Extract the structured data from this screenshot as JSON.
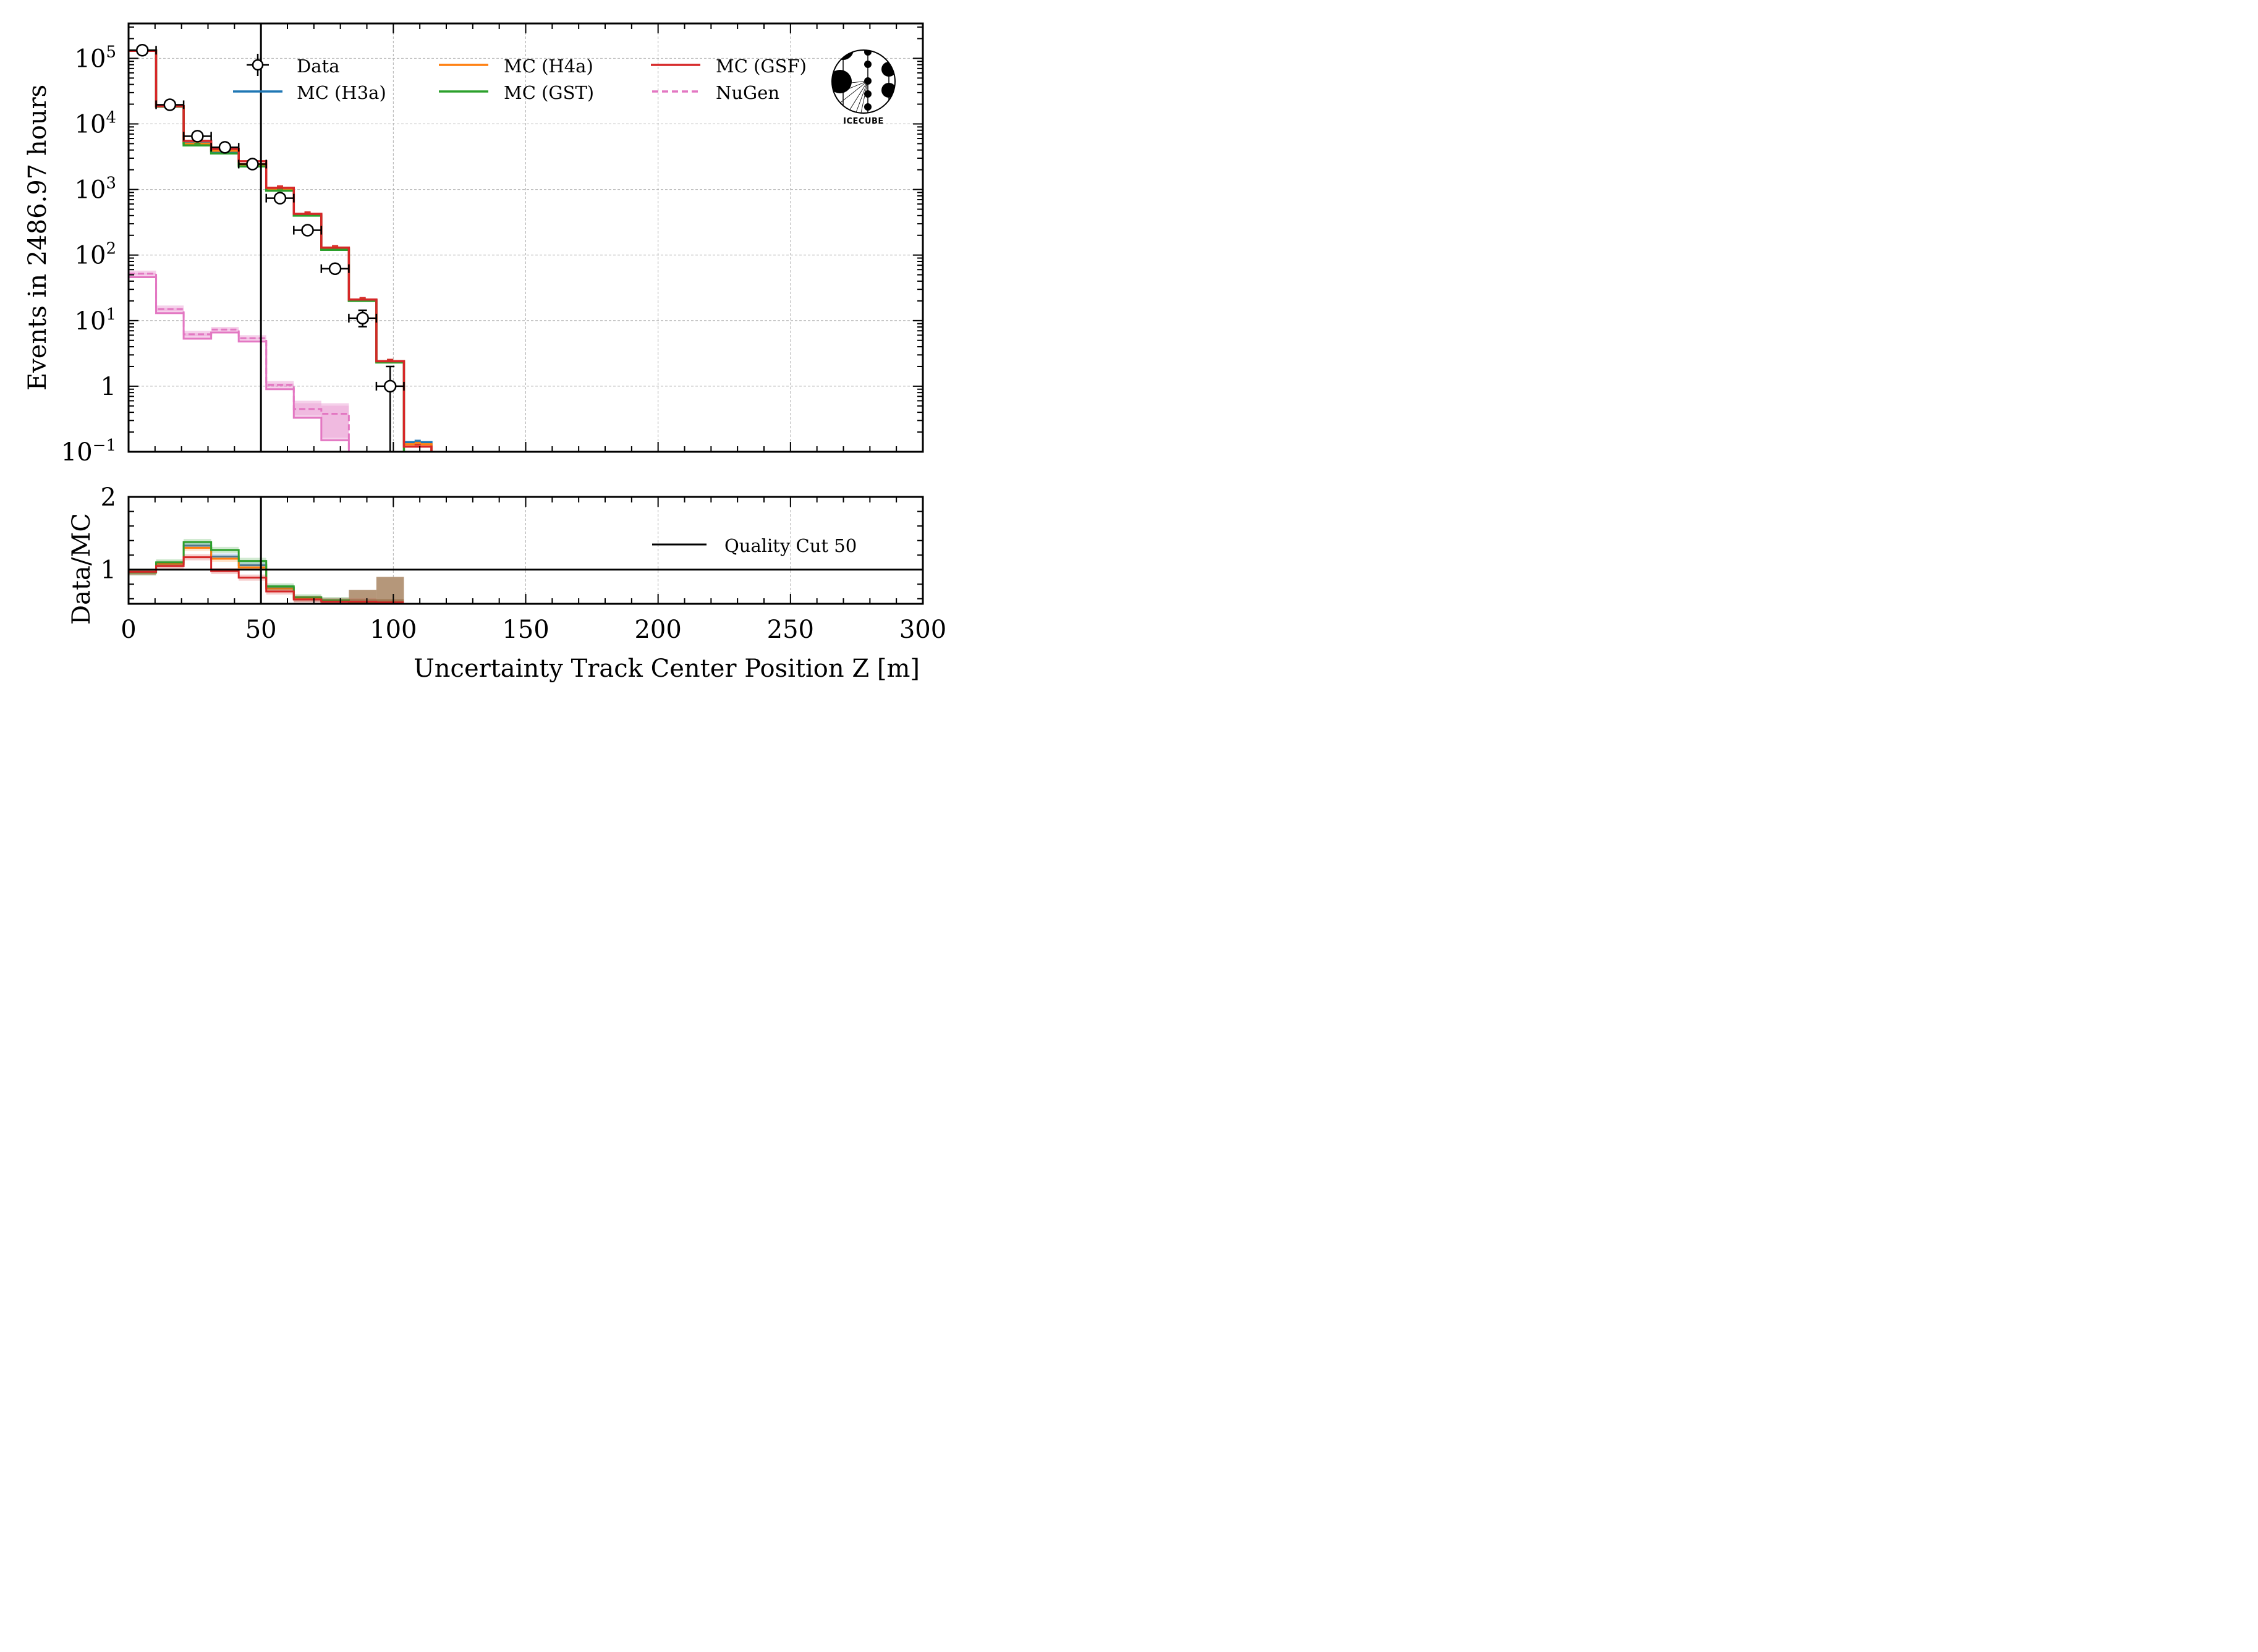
{
  "chart_data": [
    {
      "panel": "main",
      "type": "bar",
      "histtype": "step",
      "title": "",
      "xlabel": "Uncertainty Track Center Position Z [m]",
      "ylabel": "Events in 2486.97 hours",
      "xlim": [
        0,
        300
      ],
      "ylim": [
        0.1,
        340000
      ],
      "yscale": "log",
      "grid": true,
      "xticks": [
        0,
        50,
        100,
        150,
        200,
        250,
        300
      ],
      "yticks": [
        {
          "value": 100000,
          "base": "10",
          "exp": "5"
        },
        {
          "value": 10000,
          "base": "10",
          "exp": "4"
        },
        {
          "value": 1000,
          "base": "10",
          "exp": "3"
        },
        {
          "value": 100,
          "base": "10",
          "exp": "2"
        },
        {
          "value": 10,
          "base": "10",
          "exp": "1"
        },
        {
          "value": 1,
          "base": "1",
          "exp": ""
        },
        {
          "value": 0.1,
          "base": "10",
          "exp": "−1"
        }
      ],
      "bin_edges": [
        0,
        10.4,
        20.8,
        31.2,
        41.6,
        52.0,
        62.4,
        72.8,
        83.2,
        93.6,
        104.0,
        114.4
      ],
      "series": [
        {
          "name": "Data",
          "kind": "points",
          "color": "#000000",
          "values": [
            133000,
            19600,
            6500,
            4400,
            2440,
            738,
            239,
            62,
            10.9,
            1.0,
            null
          ],
          "yerr_low": [
            0,
            0,
            0,
            0,
            0,
            0,
            0,
            0,
            2.8,
            0.9,
            null
          ],
          "yerr_high": [
            0,
            0,
            0,
            0,
            0,
            0,
            0,
            0,
            3.5,
            1.0,
            null
          ]
        },
        {
          "name": "MC (H3a)",
          "kind": "step",
          "color": "#1f77b4",
          "values": [
            131000,
            18700,
            5100,
            3800,
            2400,
            1010,
            410,
            125,
            20.5,
            2.4,
            0.14
          ]
        },
        {
          "name": "MC (H4a)",
          "kind": "step",
          "color": "#ff7f0e",
          "values": [
            131000,
            18600,
            5000,
            3900,
            2420,
            1020,
            415,
            126,
            20.5,
            2.4,
            0.13
          ]
        },
        {
          "name": "MC (GST)",
          "kind": "step",
          "color": "#2ca02c",
          "values": [
            132000,
            18300,
            4700,
            3550,
            2250,
            960,
            400,
            120,
            20.0,
            2.3,
            0.0
          ]
        },
        {
          "name": "MC (GSF)",
          "kind": "step",
          "color": "#d62728",
          "values": [
            130000,
            18600,
            5500,
            4150,
            2700,
            1060,
            425,
            130,
            21.0,
            2.4,
            0.12
          ]
        },
        {
          "name": "NuGen",
          "kind": "dashed-step",
          "color": "#e377c2",
          "values": [
            52,
            15,
            6.2,
            7.3,
            5.4,
            1.05,
            0.45,
            0.38,
            null,
            null,
            null
          ],
          "band_low": [
            46,
            13,
            5.3,
            6.6,
            4.8,
            0.9,
            0.33,
            0.15,
            null,
            null,
            null
          ],
          "band_high": [
            58,
            17,
            7.0,
            8.0,
            6.0,
            1.2,
            0.6,
            0.55,
            null,
            null,
            null
          ]
        }
      ],
      "annotations": [
        {
          "type": "vline",
          "x": 50,
          "color": "#000000",
          "label": "Quality Cut 50"
        }
      ],
      "legend": {
        "placement": "top",
        "columns": 3,
        "entries": [
          "Data",
          "MC (H3a)",
          "MC (H4a)",
          "MC (GST)",
          "MC (GSF)",
          "NuGen"
        ]
      },
      "logo": {
        "text": "IceCube"
      }
    },
    {
      "panel": "ratio",
      "type": "bar",
      "histtype": "step",
      "xlabel": "Uncertainty Track Center Position Z [m]",
      "ylabel": "Data/MC",
      "xlim": [
        0,
        300
      ],
      "ylim": [
        0.53,
        2.0
      ],
      "yticks": [
        1,
        2
      ],
      "grid": true,
      "bin_edges": [
        0,
        10.4,
        20.8,
        31.2,
        41.6,
        52.0,
        62.4,
        72.8,
        83.2,
        93.6,
        104.0
      ],
      "series": [
        {
          "name": "MC (H3a)",
          "color": "#1f77b4",
          "values": [
            0.97,
            1.08,
            1.33,
            1.18,
            1.06,
            0.75,
            0.6,
            0.57,
            0.55,
            0.55
          ]
        },
        {
          "name": "MC (H4a)",
          "color": "#ff7f0e",
          "values": [
            0.97,
            1.08,
            1.3,
            1.15,
            1.03,
            0.74,
            0.6,
            0.57,
            0.55,
            0.55
          ]
        },
        {
          "name": "MC (GST)",
          "color": "#2ca02c",
          "values": [
            0.96,
            1.1,
            1.38,
            1.27,
            1.12,
            0.77,
            0.62,
            0.58,
            0.55,
            0.55
          ]
        },
        {
          "name": "MC (GSF)",
          "color": "#d62728",
          "values": [
            0.97,
            1.05,
            1.17,
            0.98,
            0.89,
            0.7,
            0.59,
            0.56,
            0.56,
            0.55
          ]
        }
      ],
      "uncertainty_fill": {
        "color": "#b5977a",
        "bins": [
          8,
          9
        ],
        "values": [
          0.72,
          0.9
        ]
      },
      "reference_line": 1.0,
      "annotations": [
        {
          "type": "vline",
          "x": 50,
          "color": "#000000"
        }
      ],
      "legend": {
        "placement": "right",
        "entries": [
          "Quality Cut 50"
        ]
      }
    }
  ]
}
